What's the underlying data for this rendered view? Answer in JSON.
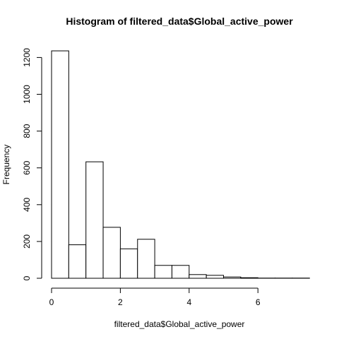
{
  "chart_data": {
    "type": "bar",
    "title": "Histogram of filtered_data$Global_active_power",
    "xlabel": "filtered_data$Global_active_power",
    "ylabel": "Frequency",
    "bin_edges": [
      0,
      0.5,
      1,
      1.5,
      2,
      2.5,
      3,
      3.5,
      4,
      4.5,
      5,
      5.5,
      6,
      6.5,
      7,
      7.5
    ],
    "values": [
      1236,
      182,
      633,
      277,
      160,
      212,
      70,
      70,
      20,
      16,
      7,
      3,
      1,
      1,
      1
    ],
    "xlim": [
      0,
      7.5
    ],
    "ylim": [
      0,
      1236
    ],
    "x_ticks": [
      0,
      2,
      4,
      6
    ],
    "y_ticks": [
      0,
      200,
      400,
      600,
      800,
      1000,
      1200
    ],
    "grid": false
  }
}
